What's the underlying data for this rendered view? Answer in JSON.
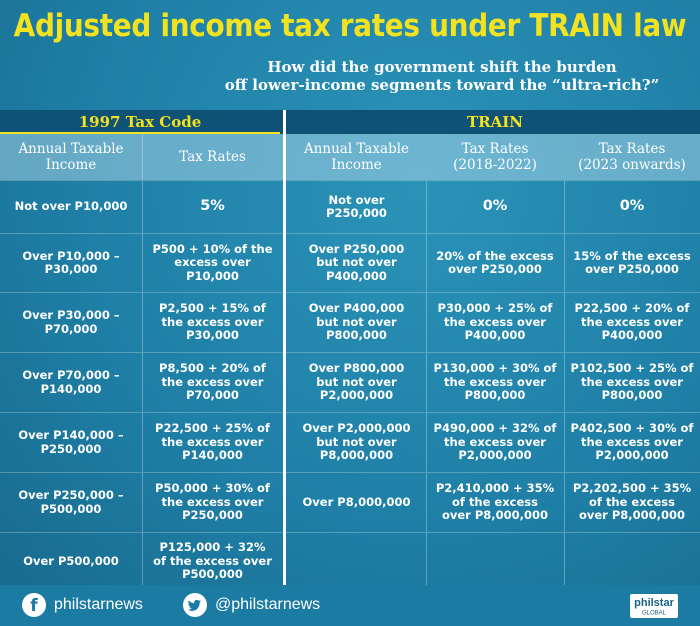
{
  "title": "Adjusted income tax rates under TRAIN law",
  "subtitle_line1": "How did the government shift the burden",
  "subtitle_line2": "off lower-income segments toward the “ultra-rich?”",
  "sections": {
    "left": "1997 Tax Code",
    "right": "TRAIN"
  },
  "headers": {
    "c1": [
      "Annual Taxable",
      "Income"
    ],
    "c2": [
      "Tax Rates"
    ],
    "c3": [
      "Annual Taxable",
      "Income"
    ],
    "c4": [
      "Tax Rates",
      "(2018-2022)"
    ],
    "c5": [
      "Tax Rates",
      "(2023 onwards)"
    ]
  },
  "rows": [
    {
      "c1": [
        "Not over P10,000"
      ],
      "c2": [
        "5%"
      ],
      "c3": [
        "Not over",
        "P250,000"
      ],
      "c4": [
        "0%"
      ],
      "c5": [
        "0%"
      ]
    },
    {
      "c1": [
        "Over P10,000 –",
        "P30,000"
      ],
      "c2": [
        "P500 + 10% of the",
        "excess over",
        "P10,000"
      ],
      "c3": [
        "Over P250,000",
        "but not over",
        "P400,000"
      ],
      "c4": [
        "20% of the excess",
        "over P250,000"
      ],
      "c5": [
        "15% of the excess",
        "over P250,000"
      ]
    },
    {
      "c1": [
        "Over P30,000 –",
        "P70,000"
      ],
      "c2": [
        "P2,500 + 15% of",
        "the excess over",
        "P30,000"
      ],
      "c3": [
        "Over P400,000",
        "but not over",
        "P800,000"
      ],
      "c4": [
        "P30,000 + 25% of",
        "the excess over",
        "P400,000"
      ],
      "c5": [
        "P22,500 + 20% of",
        "the excess over",
        "P400,000"
      ]
    },
    {
      "c1": [
        "Over P70,000 –",
        "P140,000"
      ],
      "c2": [
        "P8,500 + 20% of",
        "the excess over",
        "P70,000"
      ],
      "c3": [
        "Over P800,000",
        "but not over",
        "P2,000,000"
      ],
      "c4": [
        "P130,000 + 30% of",
        "the excess over",
        "P800,000"
      ],
      "c5": [
        "P102,500 + 25% of",
        "the excess over",
        "P800,000"
      ]
    },
    {
      "c1": [
        "Over P140,000 –",
        "P250,000"
      ],
      "c2": [
        "P22,500 + 25% of",
        "the excess over",
        "P140,000"
      ],
      "c3": [
        "Over P2,000,000",
        "but not over",
        "P8,000,000"
      ],
      "c4": [
        "P490,000 + 32% of",
        "the excess over",
        "P2,000,000"
      ],
      "c5": [
        "P402,500 + 30% of",
        "the excess over",
        "P2,000,000"
      ]
    },
    {
      "c1": [
        "Over P250,000 –",
        "P500,000"
      ],
      "c2": [
        "P50,000 + 30% of",
        "the excess over",
        "P250,000"
      ],
      "c3": [
        "Over P8,000,000"
      ],
      "c4": [
        "P2,410,000 + 35%",
        "of the excess",
        "over P8,000,000"
      ],
      "c5": [
        "P2,202,500 + 35%",
        "of the excess",
        "over P8,000,000"
      ]
    },
    {
      "c1": [
        "Over P500,000"
      ],
      "c2": [
        "P125,000 + 32%",
        "of the excess over",
        "P500,000"
      ],
      "c3": [],
      "c4": [],
      "c5": []
    }
  ],
  "footer": {
    "facebook_icon_glyph": "f",
    "facebook_handle": "philstarnews",
    "twitter_handle": "@philstarnews",
    "logo_top": "philstar",
    "logo_bottom": "GLOBAL"
  },
  "colors": {
    "background": "#1f7fa6",
    "title": "#f2e21f",
    "section_bar": "#0f5275"
  }
}
